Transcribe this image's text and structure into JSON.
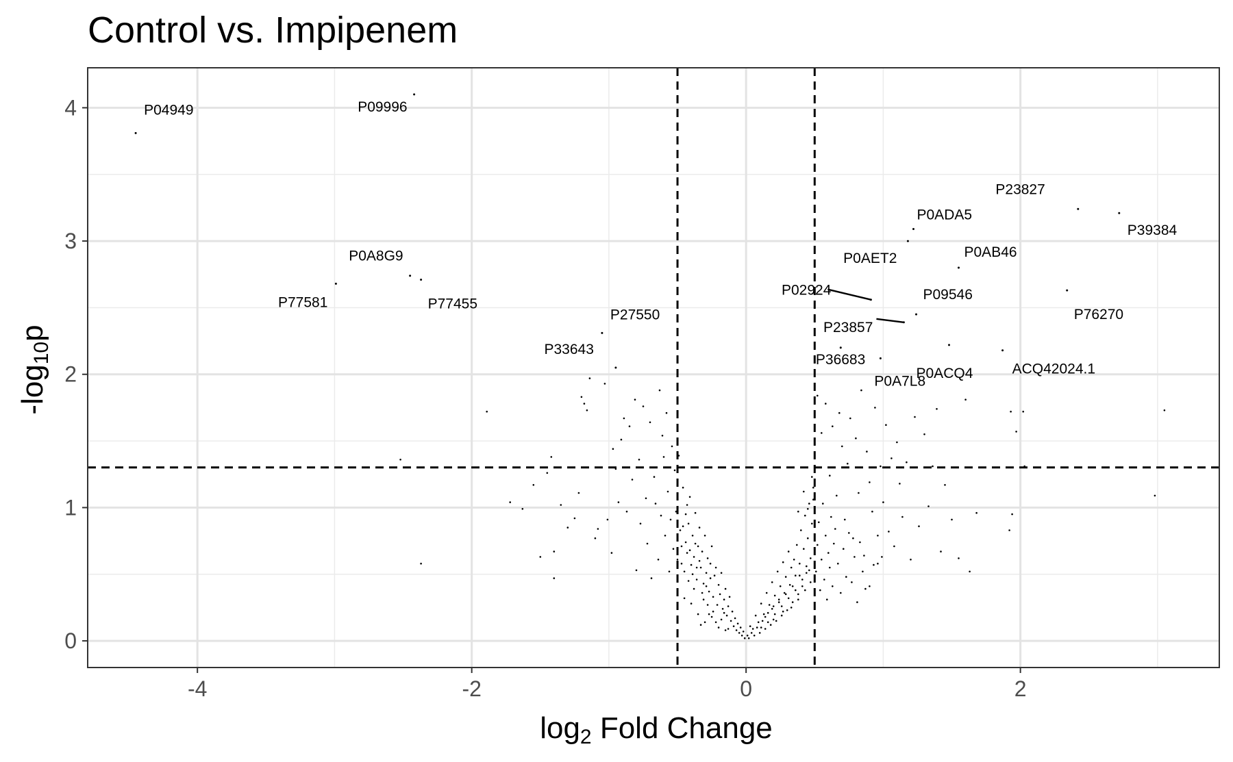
{
  "chart_data": {
    "type": "scatter",
    "title": "Control vs. Impipenem",
    "xlabel": {
      "main": "log",
      "sub": "2",
      "rest": " Fold Change"
    },
    "ylabel": {
      "main": "-log",
      "sub": "10",
      "rest": "p"
    },
    "xlim": [
      -4.8,
      3.45
    ],
    "ylim": [
      -0.2,
      4.3
    ],
    "x_ticks": [
      -4,
      -2,
      0,
      2
    ],
    "x_tick_labels": [
      "-4",
      "-2",
      "0",
      "2"
    ],
    "y_ticks": [
      0,
      1,
      2,
      3,
      4
    ],
    "y_tick_labels": [
      "0",
      "1",
      "2",
      "3",
      "4"
    ],
    "grid": true,
    "legend": "none",
    "thresholds": {
      "x": [
        -0.5,
        0.5
      ],
      "y": 1.301
    },
    "labeled_points": [
      {
        "label": "P04949",
        "x": -4.45,
        "y": 3.81
      },
      {
        "label": "P09996",
        "x": -2.42,
        "y": 4.1
      },
      {
        "label": "P0A8G9",
        "x": -2.45,
        "y": 2.74
      },
      {
        "label": "P77455",
        "x": -2.37,
        "y": 2.71
      },
      {
        "label": "P77581",
        "x": -2.99,
        "y": 2.68
      },
      {
        "label": "P27550",
        "x": -1.05,
        "y": 2.31
      },
      {
        "label": "P33643",
        "x": -0.95,
        "y": 2.05
      },
      {
        "label": "P23827",
        "x": 2.42,
        "y": 3.24
      },
      {
        "label": "P39384",
        "x": 2.72,
        "y": 3.21
      },
      {
        "label": "P0ADA5",
        "x": 1.22,
        "y": 3.09
      },
      {
        "label": "P0AB46",
        "x": 1.55,
        "y": 2.8
      },
      {
        "label": "P0AET2",
        "x": 1.18,
        "y": 3.0
      },
      {
        "label": "P02924",
        "x": 0.91,
        "y": 2.56
      },
      {
        "label": "P09546",
        "x": 1.24,
        "y": 2.45
      },
      {
        "label": "P76270",
        "x": 2.34,
        "y": 2.63
      },
      {
        "label": "P23857",
        "x": 1.15,
        "y": 2.39
      },
      {
        "label": "P36683",
        "x": 0.69,
        "y": 2.2
      },
      {
        "label": "P0A7L8",
        "x": 0.98,
        "y": 2.12
      },
      {
        "label": "P0ACQ4",
        "x": 1.48,
        "y": 2.22
      },
      {
        "label": "ACQ42024.1",
        "x": 1.87,
        "y": 2.18
      }
    ],
    "points": [
      [
        -1.89,
        1.72
      ],
      [
        -2.52,
        1.36
      ],
      [
        -2.37,
        0.58
      ],
      [
        -1.72,
        1.04
      ],
      [
        -1.63,
        0.99
      ],
      [
        -1.55,
        1.17
      ],
      [
        -1.5,
        0.63
      ],
      [
        -1.45,
        1.26
      ],
      [
        -1.42,
        1.38
      ],
      [
        -1.4,
        0.67
      ],
      [
        -1.4,
        0.47
      ],
      [
        -1.35,
        1.02
      ],
      [
        -1.3,
        0.85
      ],
      [
        -1.25,
        0.92
      ],
      [
        -1.22,
        1.11
      ],
      [
        -1.2,
        1.83
      ],
      [
        -1.18,
        1.78
      ],
      [
        -1.16,
        1.73
      ],
      [
        -1.14,
        1.97
      ],
      [
        -1.1,
        0.77
      ],
      [
        -1.08,
        0.84
      ],
      [
        -1.03,
        1.93
      ],
      [
        -1.01,
        0.91
      ],
      [
        -0.98,
        0.66
      ],
      [
        -0.97,
        1.44
      ],
      [
        -0.95,
        1.29
      ],
      [
        -0.93,
        1.04
      ],
      [
        -0.91,
        1.51
      ],
      [
        -0.89,
        1.67
      ],
      [
        -0.87,
        0.97
      ],
      [
        -0.85,
        1.61
      ],
      [
        -0.83,
        1.21
      ],
      [
        -0.81,
        1.81
      ],
      [
        -0.8,
        0.53
      ],
      [
        -0.78,
        1.36
      ],
      [
        -0.77,
        0.88
      ],
      [
        -0.75,
        1.76
      ],
      [
        -0.73,
        1.07
      ],
      [
        -0.72,
        0.73
      ],
      [
        -0.7,
        1.64
      ],
      [
        -0.69,
        0.47
      ],
      [
        -0.67,
        1.23
      ],
      [
        -0.66,
        1.03
      ],
      [
        -0.64,
        0.61
      ],
      [
        -0.63,
        1.88
      ],
      [
        -0.62,
        0.94
      ],
      [
        -0.61,
        1.54
      ],
      [
        -0.6,
        1.38
      ],
      [
        -0.59,
        0.79
      ],
      [
        -0.58,
        1.71
      ],
      [
        -0.57,
        1.12
      ],
      [
        -0.56,
        0.52
      ],
      [
        -0.55,
        0.91
      ],
      [
        -0.54,
        1.46
      ],
      [
        -0.53,
        0.69
      ],
      [
        -0.52,
        1.28
      ],
      [
        -0.51,
        0.97
      ],
      [
        -0.5,
        0.61
      ],
      [
        -0.49,
        1.39
      ],
      [
        -0.48,
        0.83
      ],
      [
        -0.47,
        0.71
      ],
      [
        -0.46,
        1.15
      ],
      [
        -0.45,
        0.52
      ],
      [
        -0.44,
        0.95
      ],
      [
        -0.43,
        0.66
      ],
      [
        -0.42,
        0.88
      ],
      [
        -0.41,
        1.08
      ],
      [
        -0.4,
        0.57
      ],
      [
        -0.39,
        0.79
      ],
      [
        -0.38,
        0.63
      ],
      [
        -0.37,
        0.96
      ],
      [
        -0.36,
        0.46
      ],
      [
        -0.35,
        0.71
      ],
      [
        -0.34,
        0.85
      ],
      [
        -0.33,
        0.55
      ],
      [
        -0.32,
        0.67
      ],
      [
        -0.31,
        0.43
      ],
      [
        -0.3,
        0.79
      ],
      [
        -0.29,
        0.51
      ],
      [
        -0.28,
        0.62
      ],
      [
        -0.27,
        0.37
      ],
      [
        -0.26,
        0.58
      ],
      [
        -0.25,
        0.71
      ],
      [
        -0.24,
        0.33
      ],
      [
        -0.23,
        0.49
      ],
      [
        -0.22,
        0.55
      ],
      [
        -0.21,
        0.27
      ],
      [
        -0.2,
        0.42
      ],
      [
        -0.19,
        0.35
      ],
      [
        -0.18,
        0.51
      ],
      [
        -0.17,
        0.24
      ],
      [
        -0.16,
        0.31
      ],
      [
        -0.15,
        0.39
      ],
      [
        -0.14,
        0.19
      ],
      [
        -0.13,
        0.26
      ],
      [
        -0.12,
        0.33
      ],
      [
        -0.11,
        0.15
      ],
      [
        -0.1,
        0.22
      ],
      [
        -0.09,
        0.11
      ],
      [
        -0.08,
        0.17
      ],
      [
        -0.07,
        0.08
      ],
      [
        -0.06,
        0.13
      ],
      [
        -0.05,
        0.06
      ],
      [
        -0.04,
        0.1
      ],
      [
        -0.03,
        0.04
      ],
      [
        -0.02,
        0.07
      ],
      [
        -0.01,
        0.02
      ],
      [
        -0.2,
        0.1
      ],
      [
        -0.15,
        0.08
      ],
      [
        -0.3,
        0.14
      ],
      [
        -0.25,
        0.18
      ],
      [
        -0.35,
        0.2
      ],
      [
        -0.4,
        0.28
      ],
      [
        -0.45,
        0.32
      ],
      [
        -0.33,
        0.12
      ],
      [
        -0.27,
        0.2
      ],
      [
        -0.22,
        0.14
      ],
      [
        -0.42,
        0.45
      ],
      [
        -0.38,
        0.39
      ],
      [
        -0.36,
        0.55
      ],
      [
        -0.31,
        0.31
      ],
      [
        -0.29,
        0.41
      ],
      [
        -0.26,
        0.47
      ],
      [
        -0.24,
        0.22
      ],
      [
        -0.18,
        0.16
      ],
      [
        -0.16,
        0.21
      ],
      [
        -0.13,
        0.09
      ],
      [
        -0.44,
        0.74
      ],
      [
        -0.41,
        0.68
      ],
      [
        -0.39,
        0.5
      ],
      [
        -0.34,
        0.6
      ],
      [
        -0.32,
        0.36
      ],
      [
        -0.47,
        0.58
      ],
      [
        -0.46,
        0.86
      ],
      [
        -0.43,
        1.02
      ],
      [
        -0.37,
        0.73
      ],
      [
        -0.28,
        0.27
      ],
      [
        0.52,
        1.84
      ],
      [
        0.55,
        1.56
      ],
      [
        0.58,
        1.78
      ],
      [
        0.61,
        1.24
      ],
      [
        0.63,
        1.61
      ],
      [
        0.66,
        1.09
      ],
      [
        0.68,
        1.71
      ],
      [
        0.7,
        1.46
      ],
      [
        0.72,
        0.91
      ],
      [
        0.74,
        1.33
      ],
      [
        0.76,
        1.67
      ],
      [
        0.78,
        0.77
      ],
      [
        0.8,
        1.52
      ],
      [
        0.82,
        1.11
      ],
      [
        0.84,
        1.88
      ],
      [
        0.86,
        0.64
      ],
      [
        0.88,
        1.42
      ],
      [
        0.9,
        1.19
      ],
      [
        0.92,
        0.97
      ],
      [
        0.94,
        1.75
      ],
      [
        0.96,
        0.58
      ],
      [
        0.98,
        1.31
      ],
      [
        1.0,
        1.04
      ],
      [
        1.02,
        1.62
      ],
      [
        1.04,
        0.82
      ],
      [
        1.06,
        1.37
      ],
      [
        1.08,
        0.71
      ],
      [
        1.1,
        1.49
      ],
      [
        1.12,
        1.18
      ],
      [
        1.14,
        0.93
      ],
      [
        1.17,
        1.34
      ],
      [
        1.2,
        0.61
      ],
      [
        1.23,
        1.68
      ],
      [
        1.26,
        0.86
      ],
      [
        1.3,
        1.55
      ],
      [
        1.33,
        1.01
      ],
      [
        1.36,
        1.31
      ],
      [
        1.39,
        1.74
      ],
      [
        1.42,
        0.67
      ],
      [
        1.45,
        1.17
      ],
      [
        1.5,
        0.91
      ],
      [
        1.55,
        0.62
      ],
      [
        1.6,
        1.81
      ],
      [
        1.63,
        0.52
      ],
      [
        1.68,
        0.96
      ],
      [
        1.93,
        1.72
      ],
      [
        1.94,
        0.95
      ],
      [
        1.97,
        1.57
      ],
      [
        2.03,
        1.31
      ],
      [
        2.02,
        1.72
      ],
      [
        3.05,
        1.73
      ],
      [
        2.98,
        1.09
      ],
      [
        1.92,
        0.83
      ],
      [
        0.51,
        0.52
      ],
      [
        0.52,
        0.72
      ],
      [
        0.53,
        0.89
      ],
      [
        0.54,
        0.38
      ],
      [
        0.55,
        0.61
      ],
      [
        0.56,
        1.03
      ],
      [
        0.57,
        0.46
      ],
      [
        0.58,
        0.79
      ],
      [
        0.59,
        0.31
      ],
      [
        0.6,
        0.66
      ],
      [
        0.61,
        0.55
      ],
      [
        0.62,
        0.93
      ],
      [
        0.63,
        0.41
      ],
      [
        0.64,
        0.73
      ],
      [
        0.65,
        0.84
      ],
      [
        0.67,
        0.58
      ],
      [
        0.69,
        0.36
      ],
      [
        0.71,
        0.69
      ],
      [
        0.73,
        0.48
      ],
      [
        0.75,
        0.81
      ],
      [
        0.77,
        0.44
      ],
      [
        0.79,
        0.63
      ],
      [
        0.81,
        0.29
      ],
      [
        0.83,
        0.74
      ],
      [
        0.85,
        0.52
      ],
      [
        0.87,
        0.39
      ],
      [
        0.9,
        0.41
      ],
      [
        0.93,
        0.57
      ],
      [
        0.96,
        0.79
      ],
      [
        0.99,
        0.63
      ],
      [
        0.49,
        1.15
      ],
      [
        0.48,
        0.88
      ],
      [
        0.47,
        0.62
      ],
      [
        0.46,
        1.03
      ],
      [
        0.45,
        0.77
      ],
      [
        0.44,
        0.51
      ],
      [
        0.43,
        0.94
      ],
      [
        0.42,
        0.69
      ],
      [
        0.41,
        0.41
      ],
      [
        0.4,
        0.83
      ],
      [
        0.39,
        0.58
      ],
      [
        0.38,
        0.35
      ],
      [
        0.37,
        0.72
      ],
      [
        0.36,
        0.49
      ],
      [
        0.35,
        0.61
      ],
      [
        0.34,
        0.29
      ],
      [
        0.33,
        0.55
      ],
      [
        0.32,
        0.42
      ],
      [
        0.31,
        0.67
      ],
      [
        0.3,
        0.23
      ],
      [
        0.29,
        0.48
      ],
      [
        0.28,
        0.36
      ],
      [
        0.27,
        0.59
      ],
      [
        0.26,
        0.19
      ],
      [
        0.25,
        0.41
      ],
      [
        0.24,
        0.31
      ],
      [
        0.23,
        0.52
      ],
      [
        0.22,
        0.15
      ],
      [
        0.21,
        0.34
      ],
      [
        0.2,
        0.26
      ],
      [
        0.19,
        0.44
      ],
      [
        0.18,
        0.12
      ],
      [
        0.17,
        0.27
      ],
      [
        0.16,
        0.21
      ],
      [
        0.15,
        0.36
      ],
      [
        0.14,
        0.09
      ],
      [
        0.13,
        0.2
      ],
      [
        0.12,
        0.15
      ],
      [
        0.11,
        0.28
      ],
      [
        0.1,
        0.06
      ],
      [
        0.09,
        0.14
      ],
      [
        0.08,
        0.1
      ],
      [
        0.07,
        0.19
      ],
      [
        0.06,
        0.04
      ],
      [
        0.05,
        0.09
      ],
      [
        0.04,
        0.06
      ],
      [
        0.03,
        0.11
      ],
      [
        0.02,
        0.02
      ],
      [
        0.01,
        0.04
      ],
      [
        0.11,
        0.1
      ],
      [
        0.16,
        0.14
      ],
      [
        0.21,
        0.2
      ],
      [
        0.26,
        0.26
      ],
      [
        0.31,
        0.32
      ],
      [
        0.36,
        0.38
      ],
      [
        0.41,
        0.46
      ],
      [
        0.46,
        0.53
      ],
      [
        0.14,
        0.18
      ],
      [
        0.19,
        0.24
      ],
      [
        0.24,
        0.29
      ],
      [
        0.29,
        0.35
      ],
      [
        0.34,
        0.41
      ],
      [
        0.39,
        0.49
      ],
      [
        0.44,
        0.56
      ],
      [
        0.2,
        0.16
      ],
      [
        0.27,
        0.22
      ],
      [
        0.33,
        0.25
      ],
      [
        0.38,
        0.31
      ],
      [
        0.43,
        0.38
      ],
      [
        0.47,
        0.44
      ],
      [
        0.48,
        1.23
      ],
      [
        0.49,
        1.06
      ],
      [
        0.45,
        0.99
      ],
      [
        0.42,
        1.12
      ],
      [
        0.38,
        0.97
      ]
    ]
  }
}
